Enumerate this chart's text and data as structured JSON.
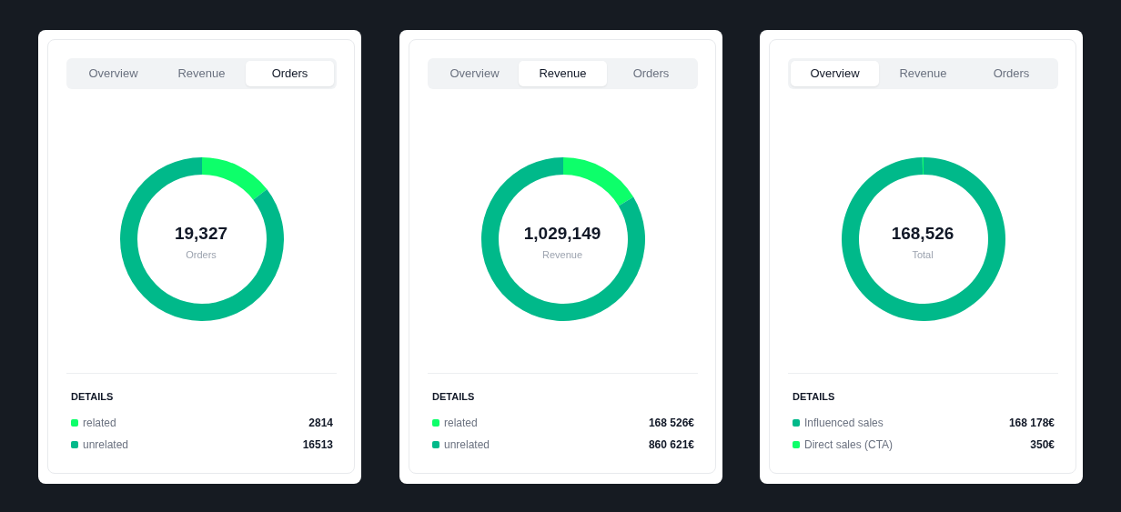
{
  "chart_data": [
    {
      "type": "donut",
      "title": "19,327",
      "subtitle": "Orders",
      "legend_title": "DETAILS",
      "annotations": [
        "Overview",
        "Revenue",
        "Orders"
      ],
      "legend": "bottom",
      "data_labels": true,
      "categories": [
        "related",
        "unrelated"
      ],
      "values": [
        2814,
        16513
      ],
      "colors": [
        "#0dff6a",
        "#00b98a"
      ]
    },
    {
      "type": "donut",
      "title": "1,029,149",
      "subtitle": "Revenue",
      "legend_title": "DETAILS",
      "annotations": [
        "Overview",
        "Revenue",
        "Orders"
      ],
      "legend": "bottom",
      "categories": [
        "related",
        "unrelated"
      ],
      "values": [
        168526,
        860621
      ],
      "value_labels": [
        "168 526€",
        "860 621€"
      ],
      "colors": [
        "#0dff6a",
        "#00b98a"
      ]
    },
    {
      "type": "donut",
      "title": "168,526",
      "subtitle": "Total",
      "legend_title": "DETAILS",
      "annotations": [
        "Overview",
        "Revenue",
        "Orders"
      ],
      "legend": "bottom",
      "categories": [
        "Influenced sales",
        "Direct sales (CTA)"
      ],
      "values": [
        168178,
        350
      ],
      "value_labels": [
        "168 178€",
        "350€"
      ],
      "colors": [
        "#00b98a",
        "#0dff6a"
      ]
    }
  ]
}
